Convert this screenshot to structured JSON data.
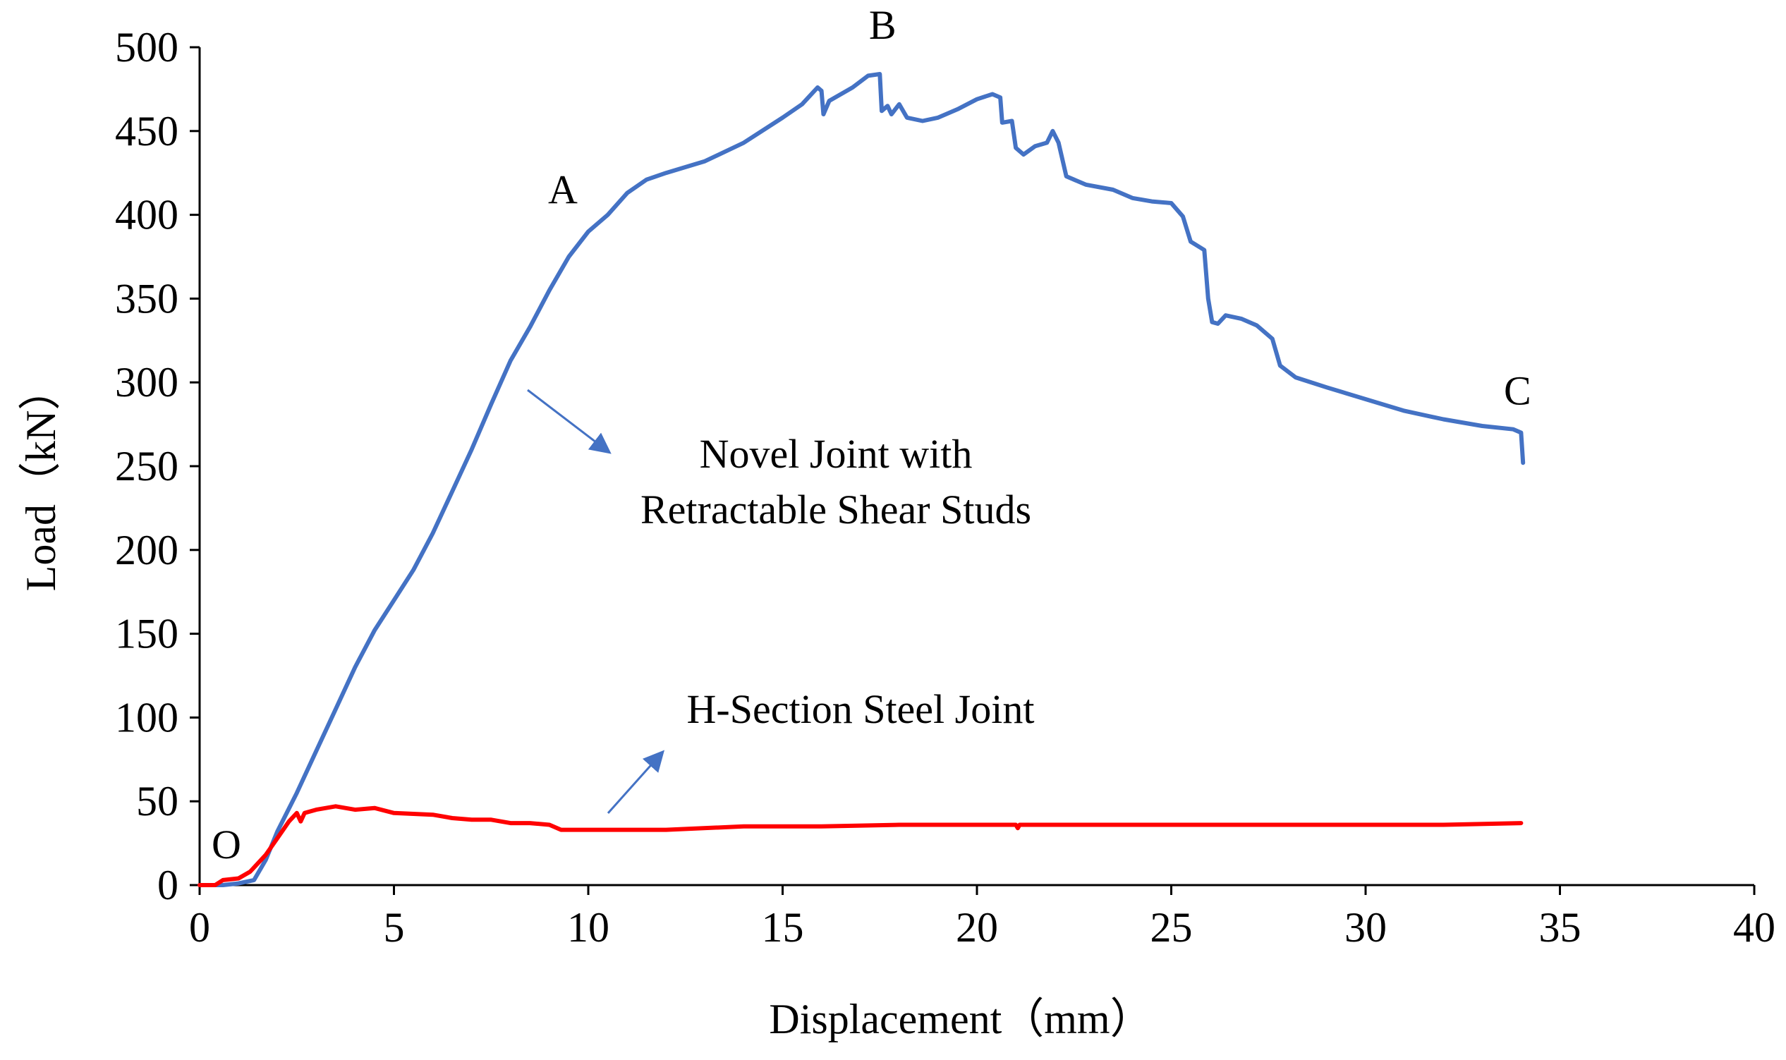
{
  "chart_data": {
    "type": "line",
    "xlabel": "Displacement（mm）",
    "ylabel": "Load（kN）",
    "xlim": [
      0,
      40
    ],
    "ylim": [
      0,
      500
    ],
    "x_ticks": [
      0,
      5,
      10,
      15,
      20,
      25,
      30,
      35,
      40
    ],
    "y_ticks": [
      0,
      50,
      100,
      150,
      200,
      250,
      300,
      350,
      400,
      450,
      500
    ],
    "grid": false,
    "series": [
      {
        "name": "Novel Joint with Retractable Shear Studs",
        "color": "#4472C4",
        "points": [
          [
            0.0,
            0
          ],
          [
            0.6,
            0
          ],
          [
            1.0,
            1
          ],
          [
            1.4,
            3
          ],
          [
            1.7,
            15
          ],
          [
            2.0,
            32
          ],
          [
            2.5,
            55
          ],
          [
            3.0,
            80
          ],
          [
            3.5,
            105
          ],
          [
            4.0,
            130
          ],
          [
            4.5,
            152
          ],
          [
            5.0,
            170
          ],
          [
            5.5,
            188
          ],
          [
            6.0,
            210
          ],
          [
            6.5,
            235
          ],
          [
            7.0,
            260
          ],
          [
            7.5,
            287
          ],
          [
            8.0,
            313
          ],
          [
            8.5,
            333
          ],
          [
            9.0,
            355
          ],
          [
            9.5,
            375
          ],
          [
            10.0,
            390
          ],
          [
            10.5,
            400
          ],
          [
            11.0,
            413
          ],
          [
            11.5,
            421
          ],
          [
            12.0,
            425
          ],
          [
            13.0,
            432
          ],
          [
            14.0,
            443
          ],
          [
            15.0,
            458
          ],
          [
            15.5,
            466
          ],
          [
            15.9,
            476
          ],
          [
            16.0,
            474
          ],
          [
            16.05,
            460
          ],
          [
            16.2,
            468
          ],
          [
            16.8,
            476
          ],
          [
            17.2,
            483
          ],
          [
            17.5,
            484
          ],
          [
            17.55,
            462
          ],
          [
            17.7,
            465
          ],
          [
            17.8,
            460
          ],
          [
            18.0,
            466
          ],
          [
            18.2,
            458
          ],
          [
            18.6,
            456
          ],
          [
            19.0,
            458
          ],
          [
            19.5,
            463
          ],
          [
            20.0,
            469
          ],
          [
            20.4,
            472
          ],
          [
            20.6,
            470
          ],
          [
            20.65,
            455
          ],
          [
            20.9,
            456
          ],
          [
            21.0,
            440
          ],
          [
            21.2,
            436
          ],
          [
            21.5,
            441
          ],
          [
            21.8,
            443
          ],
          [
            21.95,
            450
          ],
          [
            22.1,
            443
          ],
          [
            22.3,
            423
          ],
          [
            22.8,
            418
          ],
          [
            23.5,
            415
          ],
          [
            24.0,
            410
          ],
          [
            24.5,
            408
          ],
          [
            25.0,
            407
          ],
          [
            25.3,
            399
          ],
          [
            25.5,
            384
          ],
          [
            25.85,
            379
          ],
          [
            25.95,
            350
          ],
          [
            26.05,
            336
          ],
          [
            26.2,
            335
          ],
          [
            26.4,
            340
          ],
          [
            26.8,
            338
          ],
          [
            27.2,
            334
          ],
          [
            27.6,
            326
          ],
          [
            27.8,
            310
          ],
          [
            28.2,
            303
          ],
          [
            29.0,
            297
          ],
          [
            30.0,
            290
          ],
          [
            31.0,
            283
          ],
          [
            32.0,
            278
          ],
          [
            33.0,
            274
          ],
          [
            33.8,
            272
          ],
          [
            34.0,
            270
          ],
          [
            34.05,
            252
          ]
        ]
      },
      {
        "name": "H-Section Steel Joint",
        "color": "#FF0000",
        "points": [
          [
            0.0,
            0
          ],
          [
            0.4,
            0
          ],
          [
            0.6,
            3
          ],
          [
            1.0,
            4
          ],
          [
            1.3,
            8
          ],
          [
            1.7,
            18
          ],
          [
            2.0,
            28
          ],
          [
            2.3,
            38
          ],
          [
            2.5,
            43
          ],
          [
            2.6,
            38
          ],
          [
            2.7,
            43
          ],
          [
            3.0,
            45
          ],
          [
            3.5,
            47
          ],
          [
            4.0,
            45
          ],
          [
            4.5,
            46
          ],
          [
            5.0,
            43
          ],
          [
            6.0,
            42
          ],
          [
            6.5,
            40
          ],
          [
            7.0,
            39
          ],
          [
            7.5,
            39
          ],
          [
            8.0,
            37
          ],
          [
            8.5,
            37
          ],
          [
            9.0,
            36
          ],
          [
            9.3,
            33
          ],
          [
            10.0,
            33
          ],
          [
            12.0,
            33
          ],
          [
            14.0,
            35
          ],
          [
            16.0,
            35
          ],
          [
            18.0,
            36
          ],
          [
            20.0,
            36
          ],
          [
            21.0,
            36
          ],
          [
            21.05,
            34
          ],
          [
            21.1,
            36
          ],
          [
            22.0,
            36
          ],
          [
            25.0,
            36
          ],
          [
            28.0,
            36
          ],
          [
            30.0,
            36
          ],
          [
            32.0,
            36
          ],
          [
            34.0,
            37
          ]
        ]
      }
    ],
    "annotations": {
      "novel_line1": "Novel Joint with",
      "novel_line2": "Retractable Shear Studs",
      "h_section": "H-Section Steel Joint"
    },
    "point_labels": [
      {
        "label": "O",
        "x": 0.0,
        "y": 0
      },
      {
        "label": "A",
        "x": 10.0,
        "y": 390
      },
      {
        "label": "B",
        "x": 17.5,
        "y": 484
      },
      {
        "label": "C",
        "x": 34.0,
        "y": 270
      }
    ]
  }
}
